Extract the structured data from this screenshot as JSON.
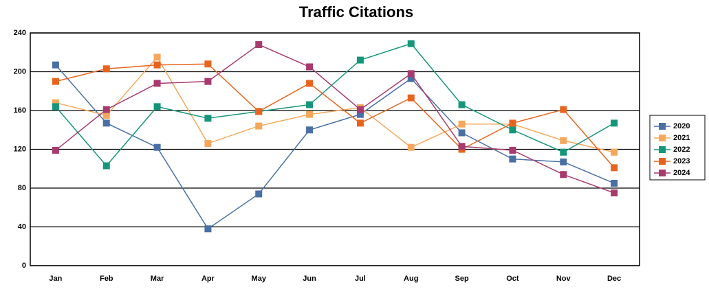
{
  "chart_data": {
    "type": "line",
    "title": "Traffic Citations",
    "categories": [
      "Jan",
      "Feb",
      "Mar",
      "Apr",
      "May",
      "Jun",
      "Jul",
      "Aug",
      "Sep",
      "Oct",
      "Nov",
      "Dec"
    ],
    "series": [
      {
        "name": "2020",
        "color": "#4a6fa5",
        "values": [
          207,
          147,
          122,
          38,
          74,
          140,
          156,
          193,
          137,
          110,
          107,
          85
        ]
      },
      {
        "name": "2021",
        "color": "#f5a85c",
        "values": [
          168,
          155,
          215,
          126,
          144,
          156,
          163,
          122,
          146,
          146,
          129,
          117
        ]
      },
      {
        "name": "2022",
        "color": "#15967a",
        "values": [
          164,
          103,
          164,
          152,
          159,
          166,
          212,
          229,
          166,
          140,
          117,
          147
        ]
      },
      {
        "name": "2023",
        "color": "#e8641e",
        "values": [
          190,
          203,
          207,
          208,
          159,
          188,
          147,
          173,
          120,
          147,
          161,
          101
        ]
      },
      {
        "name": "2024",
        "color": "#a83a6e",
        "values": [
          119,
          161,
          188,
          190,
          228,
          205,
          161,
          198,
          123,
          119,
          94,
          75
        ]
      }
    ],
    "ylim": [
      0,
      240
    ],
    "yticks": [
      0,
      40,
      80,
      120,
      160,
      200,
      240
    ],
    "grid": true,
    "legend": "right"
  }
}
